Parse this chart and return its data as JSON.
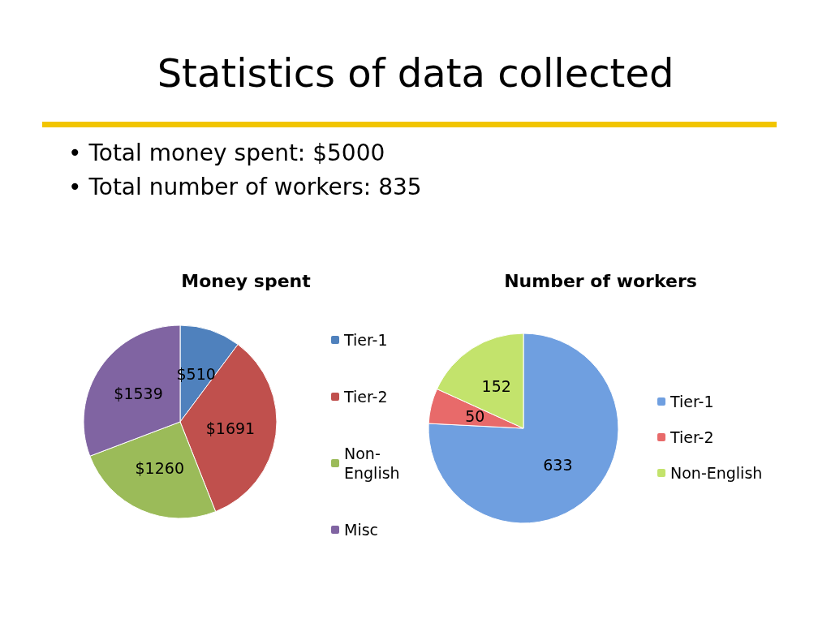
{
  "chart_data": [
    {
      "type": "other",
      "title": "Statistics of data collected",
      "annotations": [
        "• Total money spent: $5000",
        "• Total number of workers: 835"
      ]
    },
    {
      "type": "pie",
      "title": "Money spent",
      "categories": [
        "Tier-1",
        "Tier-2",
        "Non-English",
        "Misc"
      ],
      "values": [
        510,
        1691,
        1260,
        1539
      ],
      "colors": [
        "#4f81bd",
        "#c0504d",
        "#9bbb59",
        "#8064a2"
      ],
      "value_labels": [
        "$510",
        "$1691",
        "$1260",
        "$1539"
      ],
      "legend": "right"
    },
    {
      "type": "pie",
      "title": "Number of workers",
      "categories": [
        "Tier-1",
        "Tier-2",
        "Non-English"
      ],
      "values": [
        633,
        50,
        152
      ],
      "colors": [
        "#6f9fe0",
        "#e86a6a",
        "#c3e36c"
      ],
      "data_labels": true,
      "legend": "right"
    }
  ]
}
